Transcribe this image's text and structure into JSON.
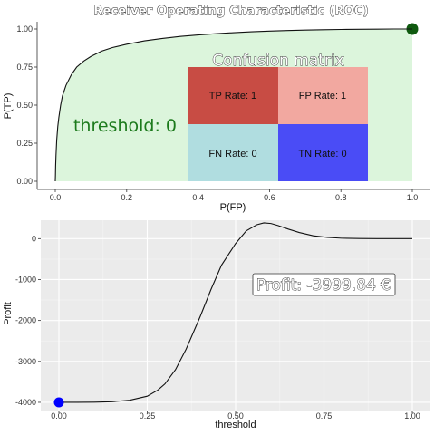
{
  "chart_data": [
    {
      "type": "line",
      "title": "Receiver Operating Characteristic (ROC)",
      "xlabel": "P(FP)",
      "ylabel": "P(TP)",
      "xlim": [
        0,
        1
      ],
      "ylim": [
        0,
        1
      ],
      "x_ticks": [
        "0.0",
        "0.2",
        "0.4",
        "0.6",
        "0.8",
        "1.0"
      ],
      "y_ticks": [
        "0.00",
        "0.25",
        "0.50",
        "0.75",
        "1.00"
      ],
      "x_tick_values": [
        0,
        0.2,
        0.4,
        0.6,
        0.8,
        1.0
      ],
      "y_tick_values": [
        0,
        0.25,
        0.5,
        0.75,
        1.0
      ],
      "curve_x": [
        0,
        0.0005,
        0.001,
        0.002,
        0.004,
        0.007,
        0.01,
        0.015,
        0.02,
        0.03,
        0.045,
        0.06,
        0.08,
        0.1,
        0.13,
        0.16,
        0.2,
        0.25,
        0.3,
        0.35,
        0.4,
        0.45,
        0.5,
        0.55,
        0.6,
        0.65,
        0.7,
        0.75,
        0.8,
        0.85,
        0.9,
        0.95,
        1.0
      ],
      "curve_y": [
        0,
        0.04,
        0.1,
        0.17,
        0.27,
        0.36,
        0.42,
        0.5,
        0.56,
        0.63,
        0.7,
        0.75,
        0.79,
        0.82,
        0.855,
        0.878,
        0.9,
        0.922,
        0.938,
        0.951,
        0.961,
        0.969,
        0.976,
        0.982,
        0.986,
        0.99,
        0.993,
        0.995,
        0.997,
        0.998,
        0.999,
        1.0,
        1.0
      ],
      "area_fill": "#dcf5dc",
      "marker": {
        "x": 1.0,
        "y": 1.0,
        "color": "#0f5a0f"
      },
      "annotation": "threshold: 0",
      "annotation_color": "#1c7a1c",
      "confusion_matrix": {
        "title": "Confusion matrix",
        "cells": [
          {
            "label": "TP Rate: 1",
            "color": "#c84c44"
          },
          {
            "label": "FP Rate: 1",
            "color": "#f2a8a0"
          },
          {
            "label": "FN Rate: 0",
            "color": "#b0dde0"
          },
          {
            "label": "TN Rate: 0",
            "color": "#4a4cf6"
          }
        ]
      }
    },
    {
      "type": "line",
      "xlabel": "threshold",
      "ylabel": "Profit",
      "xlim": [
        0,
        1
      ],
      "ylim": [
        -4200,
        450
      ],
      "x_ticks": [
        "0.00",
        "0.25",
        "0.50",
        "0.75",
        "1.00"
      ],
      "y_ticks": [
        "0",
        "-1000",
        "-2000",
        "-3000",
        "-4000"
      ],
      "x_tick_values": [
        0,
        0.25,
        0.5,
        0.75,
        1.0
      ],
      "y_tick_values": [
        0,
        -1000,
        -2000,
        -3000,
        -4000
      ],
      "x": [
        0,
        0.05,
        0.1,
        0.15,
        0.2,
        0.25,
        0.28,
        0.3,
        0.33,
        0.36,
        0.4,
        0.43,
        0.46,
        0.5,
        0.53,
        0.56,
        0.58,
        0.6,
        0.62,
        0.65,
        0.68,
        0.72,
        0.76,
        0.8,
        0.85,
        0.9,
        0.95,
        1.0
      ],
      "y": [
        -3999.84,
        -3999.5,
        -3997,
        -3985,
        -3950,
        -3850,
        -3700,
        -3550,
        -3200,
        -2700,
        -1900,
        -1250,
        -650,
        -120,
        190,
        340,
        385,
        370,
        320,
        230,
        150,
        70,
        30,
        10,
        2,
        0,
        0,
        0
      ],
      "marker": {
        "x": 0,
        "y": -3999.84,
        "color": "#0000ff"
      },
      "annotation": "Profit: -3999.84 €"
    }
  ]
}
